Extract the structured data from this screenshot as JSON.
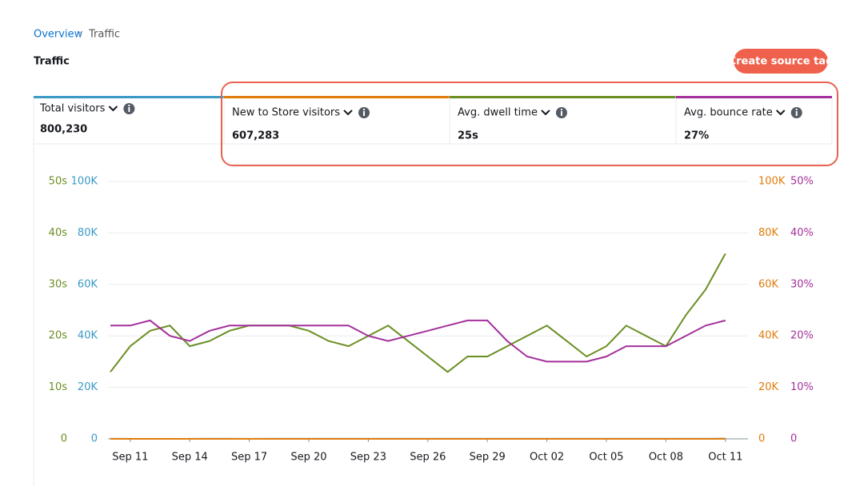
{
  "breadcrumb": [
    "Overview",
    "Traffic"
  ],
  "header": {
    "title": "Traffic",
    "button": "Create source tag"
  },
  "metrics": [
    {
      "label": "Total visitors",
      "value": "800,230",
      "color": "#3a9ac4"
    },
    {
      "label": "New to Store visitors",
      "value": "607,283",
      "color": "#e07b0b"
    },
    {
      "label": "Avg. dwell time",
      "value": "25s",
      "color": "#6b8e23"
    },
    {
      "label": "Avg. bounce rate",
      "value": "27%",
      "color": "#a4309b"
    }
  ],
  "chart_data": {
    "type": "line",
    "categories": [
      null,
      "Sep 11",
      null,
      null,
      "Sep 14",
      null,
      null,
      "Sep 17",
      null,
      null,
      "Sep 20",
      null,
      null,
      "Sep 23",
      null,
      null,
      "Sep 26",
      null,
      null,
      "Sep 29",
      null,
      null,
      "Oct 02",
      null,
      null,
      "Oct 05",
      null,
      null,
      "Oct 08",
      null,
      null,
      "Oct 11"
    ],
    "series": [
      {
        "color": "#3a9ac4",
        "axis": "y",
        "values": [
          16,
          15,
          15,
          14,
          14,
          18,
          18,
          15,
          17,
          21,
          17,
          16,
          18,
          19,
          17,
          17,
          16,
          16,
          20,
          22,
          23,
          20,
          20,
          19,
          19,
          18,
          18,
          18,
          19,
          20,
          23,
          86
        ]
      },
      {
        "color": "#e07b0b",
        "axis": "y2",
        "values": [
          10,
          11,
          9,
          9,
          9,
          11,
          9,
          9,
          10,
          11,
          9,
          9,
          10,
          9,
          9,
          8,
          10,
          10,
          9,
          9,
          12,
          11,
          11,
          11,
          11,
          11,
          11,
          12,
          13,
          14,
          14,
          35
        ]
      },
      {
        "color": "#6b8e23",
        "axis": "y3",
        "values": [
          13,
          18,
          21,
          22,
          18,
          19,
          21,
          22,
          22,
          22,
          21,
          19,
          18,
          20,
          22,
          19,
          16,
          13,
          16,
          16,
          18,
          20,
          22,
          19,
          16,
          18,
          22,
          20,
          18,
          24,
          29,
          36
        ]
      },
      {
        "color": "#a4309b",
        "axis": "y4",
        "values": [
          22,
          22,
          23,
          20,
          19,
          21,
          22,
          22,
          22,
          22,
          22,
          22,
          22,
          20,
          19,
          20,
          21,
          22,
          23,
          23,
          19,
          16,
          15,
          15,
          15,
          16,
          18,
          18,
          18,
          20,
          22,
          23
        ]
      }
    ],
    "ylim": [
      0,
      100000
    ],
    "yticks": [
      0,
      {
        "value": 20000,
        "label": "20K"
      },
      {
        "value": 40000,
        "label": "40K"
      },
      {
        "value": 60000,
        "label": "60K"
      },
      {
        "value": 80000,
        "label": "80K"
      },
      {
        "value": 100000,
        "label": "100K"
      }
    ],
    "y2lim": [
      0,
      100000
    ],
    "y2ticks": [
      0,
      {
        "value": 20000,
        "label": "20K"
      },
      {
        "value": 40000,
        "label": "40K"
      },
      {
        "value": 60000,
        "label": "60K"
      },
      {
        "value": 80000,
        "label": "80K"
      },
      {
        "value": 100000,
        "label": "100K"
      }
    ],
    "y3lim": [
      0,
      50
    ],
    "y3ticks": [
      0,
      {
        "value": 10,
        "label": "10s"
      },
      {
        "value": 20,
        "label": "20s"
      },
      {
        "value": 30,
        "label": "30s"
      },
      {
        "value": 40,
        "label": "40s"
      },
      {
        "value": 50,
        "label": "50s"
      }
    ],
    "y4lim": [
      0,
      50
    ],
    "y4ticks": [
      0,
      {
        "value": 10,
        "label": "10%"
      },
      {
        "value": 20,
        "label": "20%"
      },
      {
        "value": 30,
        "label": "30%"
      },
      {
        "value": 40,
        "label": "40%"
      },
      {
        "value": 50,
        "label": "50%"
      }
    ],
    "grid": true
  }
}
